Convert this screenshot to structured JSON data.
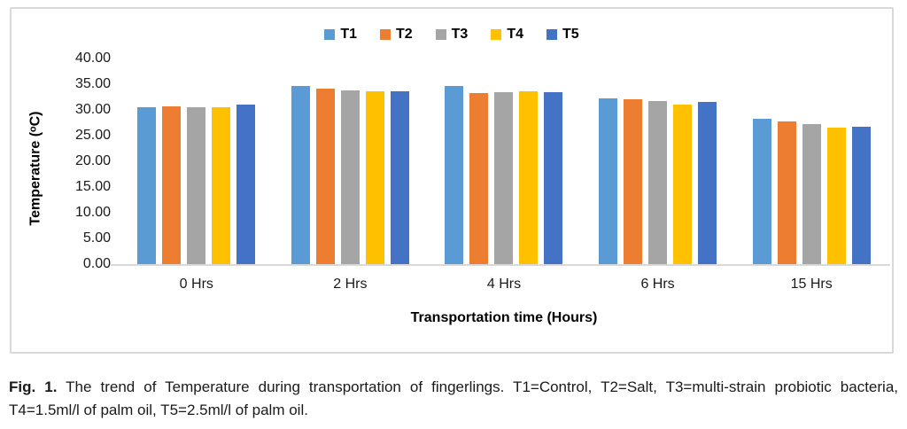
{
  "chart_data": {
    "type": "bar",
    "categories": [
      "0 Hrs",
      "2 Hrs",
      "4 Hrs",
      "6 Hrs",
      "15 Hrs"
    ],
    "series": [
      {
        "name": "T1",
        "color": "#5B9BD5",
        "values": [
          30.6,
          34.6,
          34.7,
          32.2,
          28.3
        ]
      },
      {
        "name": "T2",
        "color": "#ED7D31",
        "values": [
          30.7,
          34.2,
          33.3,
          32.1,
          27.8
        ]
      },
      {
        "name": "T3",
        "color": "#A5A5A5",
        "values": [
          30.6,
          33.8,
          33.4,
          31.7,
          27.2
        ]
      },
      {
        "name": "T4",
        "color": "#FFC000",
        "values": [
          30.5,
          33.7,
          33.6,
          31.1,
          26.6
        ]
      },
      {
        "name": "T5",
        "color": "#4472C4",
        "values": [
          31.0,
          33.6,
          33.4,
          31.6,
          26.8
        ]
      }
    ],
    "title": "",
    "xlabel": "Transportation time (Hours)",
    "ylabel": "Temperature (ᵒC)",
    "ylim": [
      0,
      40
    ],
    "ytick_step": 5,
    "ytick_labels": [
      "40.00",
      "35.00",
      "30.00",
      "25.00",
      "20.00",
      "15.00",
      "10.00",
      "5.00",
      "0.00"
    ],
    "grid": false,
    "legend_position": "top-center"
  },
  "axes": {
    "y_title": "Temperature (ᵒC)",
    "x_title": "Transportation time (Hours)"
  },
  "caption": {
    "label": "Fig. 1.",
    "text": " The trend of Temperature during transportation of fingerlings. T1=Control, T2=Salt, T3=multi-strain probiotic bacteria, T4=1.5ml/l of palm oil, T5=2.5ml/l of palm oil."
  }
}
